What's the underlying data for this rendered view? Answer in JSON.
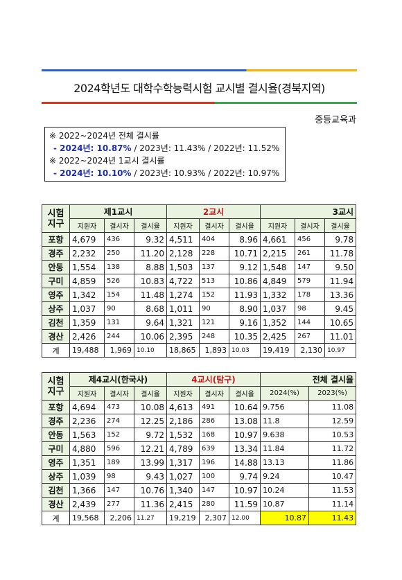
{
  "header": {
    "title": "2024학년도 대학수학능력시험 교시별 결시율(경북지역)",
    "department": "중등교육과"
  },
  "summary": [
    {
      "heading": "※ 2022~2024년 전체 결시률",
      "highlight": "- 2024년: 10.87%",
      "rest": " / 2023년: 11.43% / 2022년: 11.52%"
    },
    {
      "heading": "※ 2022~2024년 1교시 결시률",
      "highlight": "- 2024년: 10.10%",
      "rest": " / 2023년: 10.93% / 2022년: 10.97%"
    }
  ],
  "tables": [
    {
      "region_header": "시험 지구",
      "groups": [
        "제1교시",
        "2교시",
        "3교시"
      ],
      "subheaders": [
        "지원자",
        "결시자",
        "결시율",
        "지원자",
        "결시자",
        "결시율",
        "지원자",
        "결시자",
        "결시율"
      ],
      "rows": [
        [
          "포항",
          "4,679",
          "436",
          "9.32",
          "4,511",
          "404",
          "8.96",
          "4,661",
          "456",
          "9.78"
        ],
        [
          "경주",
          "2,232",
          "250",
          "11.20",
          "2,128",
          "228",
          "10.71",
          "2,215",
          "261",
          "11.78"
        ],
        [
          "안동",
          "1,554",
          "138",
          "8.88",
          "1,503",
          "137",
          "9.12",
          "1,548",
          "147",
          "9.50"
        ],
        [
          "구미",
          "4,859",
          "526",
          "10.83",
          "4,722",
          "513",
          "10.86",
          "4,849",
          "579",
          "11.94"
        ],
        [
          "영주",
          "1,342",
          "154",
          "11.48",
          "1,274",
          "152",
          "11.93",
          "1,332",
          "178",
          "13.36"
        ],
        [
          "상주",
          "1,037",
          "90",
          "8.68",
          "1,011",
          "90",
          "8.90",
          "1,037",
          "98",
          "9.45"
        ],
        [
          "김천",
          "1,359",
          "131",
          "9.64",
          "1,321",
          "121",
          "9.16",
          "1,352",
          "144",
          "10.65"
        ],
        [
          "경산",
          "2,426",
          "244",
          "10.06",
          "2,395",
          "248",
          "10.35",
          "2,425",
          "267",
          "11.01"
        ],
        [
          "계",
          "19,488",
          "1,969",
          "10.10",
          "18,865",
          "1,893",
          "10.03",
          "19,419",
          "2,130",
          "10.97"
        ]
      ]
    },
    {
      "region_header": "시험 지구",
      "groups": [
        "제4교시(한국사)",
        "4교시(탐구)",
        "전체 결시율"
      ],
      "subheaders": [
        "지원자",
        "결시자",
        "결시율",
        "지원자",
        "결시자",
        "결시율",
        "2024(%)",
        "2023(%)"
      ],
      "rows": [
        [
          "포항",
          "4,694",
          "473",
          "10.08",
          "4,613",
          "491",
          "10.64",
          "9.756",
          "11.08"
        ],
        [
          "경주",
          "2,236",
          "274",
          "12.25",
          "2,186",
          "286",
          "13.08",
          "11.8",
          "12.59"
        ],
        [
          "안동",
          "1,563",
          "152",
          "9.72",
          "1,532",
          "168",
          "10.97",
          "9.638",
          "10.53"
        ],
        [
          "구미",
          "4,880",
          "596",
          "12.21",
          "4,789",
          "639",
          "13.34",
          "11.84",
          "11.72"
        ],
        [
          "영주",
          "1,351",
          "189",
          "13.99",
          "1,317",
          "196",
          "14.88",
          "13.13",
          "11.86"
        ],
        [
          "상주",
          "1,039",
          "98",
          "9.43",
          "1,027",
          "100",
          "9.74",
          "9.24",
          "10.47"
        ],
        [
          "김천",
          "1,366",
          "147",
          "10.76",
          "1,340",
          "147",
          "10.97",
          "10.24",
          "11.53"
        ],
        [
          "경산",
          "2,439",
          "277",
          "11.36",
          "2,415",
          "280",
          "11.59",
          "10.87",
          "11.14"
        ],
        [
          "계",
          "19,568",
          "2,206",
          "11.27",
          "19,219",
          "2,307",
          "12.00",
          "10.87",
          "11.43"
        ]
      ]
    }
  ]
}
